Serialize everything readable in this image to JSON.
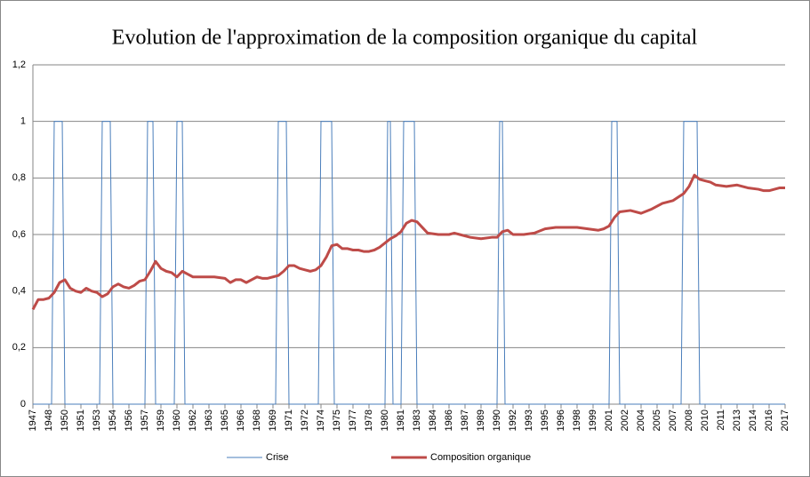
{
  "chart_data": {
    "type": "line",
    "title": "Evolution de l'approximation de la composition organique du capital",
    "xlim": [
      1947,
      2017.5
    ],
    "xticks": [
      1947,
      {
        "value": 1948.5,
        "label": "1948"
      },
      1950,
      {
        "value": 1951.5,
        "label": "1951"
      },
      1953,
      {
        "value": 1954.5,
        "label": "1954"
      },
      1956,
      {
        "value": 1957.5,
        "label": "1957"
      },
      1959,
      {
        "value": 1960.5,
        "label": "1960"
      },
      1962,
      {
        "value": 1963.5,
        "label": "1963"
      },
      1965,
      {
        "value": 1966.5,
        "label": "1966"
      },
      1968,
      {
        "value": 1969.5,
        "label": "1969"
      },
      1971,
      {
        "value": 1972.5,
        "label": "1972"
      },
      1974,
      {
        "value": 1975.5,
        "label": "1975"
      },
      1977,
      {
        "value": 1978.5,
        "label": "1978"
      },
      1980,
      {
        "value": 1981.5,
        "label": "1981"
      },
      1983,
      {
        "value": 1984.5,
        "label": "1984"
      },
      1986,
      {
        "value": 1987.5,
        "label": "1987"
      },
      1989,
      {
        "value": 1990.5,
        "label": "1990"
      },
      1992,
      {
        "value": 1993.5,
        "label": "1993"
      },
      1995,
      {
        "value": 1996.5,
        "label": "1996"
      },
      1998,
      {
        "value": 1999.5,
        "label": "1999"
      },
      2001,
      {
        "value": 2002.5,
        "label": "2002"
      },
      2004,
      {
        "value": 2005.5,
        "label": "2005"
      },
      2007,
      {
        "value": 2008.5,
        "label": "2008"
      },
      2010,
      {
        "value": 2011.5,
        "label": "2011"
      },
      2013,
      {
        "value": 2014.5,
        "label": "2014"
      },
      2016,
      {
        "value": 2017.5,
        "label": "2017"
      }
    ],
    "ylim": [
      0,
      1.2
    ],
    "yticks": [
      0,
      {
        "value": 0.2,
        "label": "0,2"
      },
      {
        "value": 0.4,
        "label": "0,4"
      },
      {
        "value": 0.6,
        "label": "0,6"
      },
      {
        "value": 0.8,
        "label": "0,8"
      },
      1,
      {
        "value": 1.2,
        "label": "1,2"
      }
    ],
    "grid": true,
    "legend": "bottom",
    "series": [
      {
        "name": "Crise",
        "color": "#4a7ebb",
        "width": 1,
        "x": [
          1947,
          1948.75,
          1949,
          1949.75,
          1950,
          1953.25,
          1953.5,
          1954.25,
          1954.5,
          1957.5,
          1957.75,
          1958.25,
          1958.5,
          1960.25,
          1960.5,
          1961,
          1961.25,
          1969.75,
          1970,
          1970.75,
          1971,
          1973.75,
          1974,
          1975,
          1975.25,
          1980,
          1980.25,
          1980.5,
          1980.75,
          1981.5,
          1981.75,
          1982.75,
          1983,
          1990.5,
          1990.75,
          1991,
          1991.25,
          2001,
          2001.25,
          2001.75,
          2002,
          2007.75,
          2008,
          2009.25,
          2009.5,
          2017.5
        ],
        "values": [
          0,
          0,
          1,
          1,
          0,
          0,
          1,
          1,
          0,
          0,
          1,
          1,
          0,
          0,
          1,
          1,
          0,
          0,
          1,
          1,
          0,
          0,
          1,
          1,
          0,
          0,
          1,
          1,
          0,
          0,
          1,
          1,
          0,
          0,
          1,
          1,
          0,
          0,
          1,
          1,
          0,
          0,
          1,
          1,
          0,
          0
        ]
      },
      {
        "name": "Composition organique",
        "color": "#be4b48",
        "width": 3,
        "x": [
          1947,
          1947.5,
          1948,
          1948.5,
          1949,
          1949.5,
          1950,
          1950.5,
          1951,
          1951.5,
          1952,
          1952.5,
          1953,
          1953.5,
          1954,
          1954.5,
          1955,
          1955.5,
          1956,
          1956.5,
          1957,
          1957.5,
          1958,
          1958.5,
          1959,
          1959.5,
          1960,
          1960.5,
          1961,
          1961.5,
          1962,
          1963,
          1964,
          1965,
          1965.5,
          1966,
          1966.5,
          1967,
          1967.5,
          1968,
          1968.5,
          1969,
          1969.5,
          1970,
          1970.5,
          1971,
          1971.5,
          1972,
          1972.5,
          1973,
          1973.5,
          1974,
          1974.5,
          1975,
          1975.5,
          1976,
          1976.5,
          1977,
          1977.5,
          1978,
          1978.5,
          1979,
          1979.5,
          1980,
          1980.5,
          1981,
          1981.5,
          1982,
          1982.5,
          1983,
          1983.5,
          1984,
          1985,
          1986,
          1986.5,
          1987,
          1988,
          1989,
          1990,
          1990.5,
          1991,
          1991.5,
          1992,
          1993,
          1994,
          1995,
          1996,
          1997,
          1998,
          1999,
          2000,
          2000.5,
          2001,
          2001.5,
          2002,
          2003,
          2004,
          2005,
          2006,
          2007,
          2008,
          2008.5,
          2009,
          2009.5,
          2010,
          2010.5,
          2011,
          2012,
          2013,
          2014,
          2015,
          2015.5,
          2016,
          2017,
          2017.5
        ],
        "values": [
          0.335,
          0.37,
          0.37,
          0.375,
          0.395,
          0.43,
          0.44,
          0.41,
          0.4,
          0.395,
          0.41,
          0.4,
          0.395,
          0.38,
          0.39,
          0.415,
          0.425,
          0.415,
          0.41,
          0.42,
          0.435,
          0.44,
          0.47,
          0.505,
          0.48,
          0.47,
          0.465,
          0.45,
          0.47,
          0.46,
          0.45,
          0.45,
          0.45,
          0.445,
          0.43,
          0.44,
          0.44,
          0.43,
          0.44,
          0.45,
          0.445,
          0.445,
          0.45,
          0.455,
          0.47,
          0.49,
          0.49,
          0.48,
          0.475,
          0.47,
          0.475,
          0.49,
          0.52,
          0.56,
          0.565,
          0.55,
          0.55,
          0.545,
          0.545,
          0.54,
          0.54,
          0.545,
          0.555,
          0.57,
          0.585,
          0.595,
          0.61,
          0.64,
          0.65,
          0.645,
          0.625,
          0.605,
          0.6,
          0.6,
          0.605,
          0.6,
          0.59,
          0.585,
          0.59,
          0.59,
          0.61,
          0.615,
          0.6,
          0.6,
          0.605,
          0.62,
          0.625,
          0.625,
          0.625,
          0.62,
          0.615,
          0.62,
          0.63,
          0.66,
          0.68,
          0.685,
          0.675,
          0.69,
          0.71,
          0.72,
          0.745,
          0.77,
          0.81,
          0.795,
          0.79,
          0.785,
          0.775,
          0.77,
          0.775,
          0.765,
          0.76,
          0.755,
          0.755,
          0.765,
          0.765
        ]
      }
    ]
  }
}
